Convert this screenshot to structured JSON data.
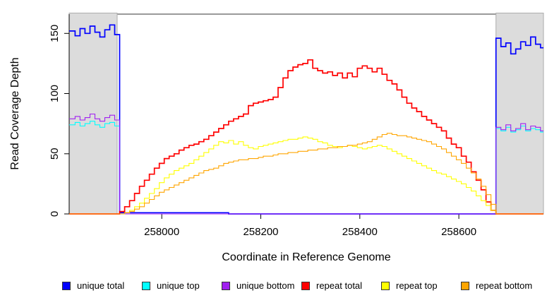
{
  "figure": {
    "xlabel": "Coordinate in Reference Genome",
    "ylabel": "Read Coverage Depth"
  },
  "chart_data": {
    "type": "line",
    "title": "",
    "xlabel": "Coordinate in Reference Genome",
    "ylabel": "Read Coverage Depth",
    "xlim": [
      257813,
      258771
    ],
    "ylim": [
      0,
      166
    ],
    "x_ticks": [
      258000,
      258200,
      258400,
      258600
    ],
    "y_ticks": [
      0,
      50,
      100,
      150
    ],
    "grid": false,
    "legend_position": "bottom",
    "x_start": 257815,
    "x_step": 10,
    "shaded_regions": [
      {
        "id": "unique-region-left",
        "x0": 257813,
        "x1": 257910,
        "color": "#DCDCDC",
        "border": "#ADADAD"
      },
      {
        "id": "unique-region-right",
        "x0": 258675,
        "x1": 258771,
        "color": "#DCDCDC",
        "border": "#ADADAD"
      }
    ],
    "series": [
      {
        "id": "unique-total",
        "name": "unique total",
        "color": "#0000FF",
        "lw": 1.7,
        "values": [
          152,
          148,
          154,
          150,
          156,
          151,
          147,
          153,
          157,
          149,
          1,
          1,
          1,
          1,
          1,
          1,
          1,
          1,
          1,
          1,
          1,
          1,
          1,
          1,
          1,
          1,
          1,
          1,
          1,
          1,
          1,
          1,
          0,
          0,
          0,
          0,
          0,
          0,
          0,
          0,
          0,
          0,
          0,
          0,
          0,
          0,
          0,
          0,
          0,
          0,
          0,
          0,
          0,
          0,
          0,
          0,
          0,
          0,
          0,
          0,
          0,
          0,
          0,
          0,
          0,
          0,
          0,
          0,
          0,
          0,
          0,
          0,
          0,
          0,
          0,
          0,
          0,
          0,
          0,
          0,
          0,
          0,
          0,
          0,
          0,
          0,
          146,
          139,
          142,
          133,
          137,
          143,
          140,
          147,
          141,
          138
        ]
      },
      {
        "id": "unique-top",
        "name": "unique top",
        "color": "#00FFFF",
        "lw": 1.1,
        "values": [
          74,
          76,
          73,
          75,
          77,
          74,
          72,
          75,
          76,
          73,
          0,
          0,
          0,
          0,
          0,
          0,
          0,
          0,
          0,
          0,
          0,
          0,
          0,
          0,
          0,
          0,
          0,
          0,
          0,
          0,
          0,
          0,
          0,
          0,
          0,
          0,
          0,
          0,
          0,
          0,
          0,
          0,
          0,
          0,
          0,
          0,
          0,
          0,
          0,
          0,
          0,
          0,
          0,
          0,
          0,
          0,
          0,
          0,
          0,
          0,
          0,
          0,
          0,
          0,
          0,
          0,
          0,
          0,
          0,
          0,
          0,
          0,
          0,
          0,
          0,
          0,
          0,
          0,
          0,
          0,
          0,
          0,
          0,
          0,
          0,
          0,
          71,
          69,
          72,
          68,
          70,
          73,
          69,
          71,
          70,
          68
        ]
      },
      {
        "id": "unique-bottom",
        "name": "unique bottom",
        "color": "#A020F0",
        "lw": 1.1,
        "values": [
          79,
          81,
          78,
          80,
          83,
          79,
          77,
          80,
          82,
          78,
          0,
          0,
          0,
          0,
          0,
          0,
          0,
          0,
          0,
          0,
          0,
          0,
          0,
          0,
          0,
          0,
          0,
          0,
          0,
          0,
          0,
          0,
          0,
          0,
          0,
          0,
          0,
          0,
          0,
          0,
          0,
          0,
          0,
          0,
          0,
          0,
          0,
          0,
          0,
          0,
          0,
          0,
          0,
          0,
          0,
          0,
          0,
          0,
          0,
          0,
          0,
          0,
          0,
          0,
          0,
          0,
          0,
          0,
          0,
          0,
          0,
          0,
          0,
          0,
          0,
          0,
          0,
          0,
          0,
          0,
          0,
          0,
          0,
          0,
          0,
          0,
          72,
          70,
          74,
          69,
          71,
          75,
          70,
          73,
          72,
          69
        ]
      },
      {
        "id": "repeat-total",
        "name": "repeat total",
        "color": "#FF0000",
        "lw": 1.7,
        "values": [
          0,
          0,
          0,
          0,
          0,
          0,
          0,
          0,
          0,
          0,
          2,
          6,
          11,
          17,
          23,
          28,
          33,
          38,
          42,
          46,
          48,
          50,
          53,
          55,
          57,
          58,
          60,
          62,
          65,
          68,
          71,
          74,
          77,
          79,
          81,
          83,
          90,
          92,
          93,
          94,
          95,
          97,
          105,
          113,
          119,
          122,
          124,
          125,
          128,
          121,
          119,
          117,
          118,
          115,
          117,
          113,
          117,
          114,
          121,
          123,
          121,
          118,
          121,
          116,
          111,
          108,
          103,
          97,
          92,
          88,
          85,
          81,
          78,
          75,
          72,
          69,
          63,
          58,
          55,
          48,
          43,
          35,
          28,
          20,
          10,
          3,
          0,
          0,
          0,
          0,
          0,
          0,
          0,
          0,
          0,
          0
        ]
      },
      {
        "id": "repeat-top",
        "name": "repeat top",
        "color": "#FFFF00",
        "lw": 1.1,
        "values": [
          0,
          0,
          0,
          0,
          0,
          0,
          0,
          0,
          0,
          0,
          0,
          1,
          3,
          6,
          9,
          13,
          17,
          21,
          26,
          30,
          33,
          36,
          38,
          40,
          42,
          45,
          48,
          51,
          54,
          57,
          60,
          59,
          61,
          58,
          60,
          57,
          55,
          54,
          56,
          57,
          58,
          59,
          60,
          61,
          62,
          62,
          63,
          64,
          63,
          62,
          60,
          59,
          57,
          56,
          55,
          56,
          57,
          56,
          55,
          54,
          55,
          56,
          57,
          56,
          54,
          52,
          50,
          48,
          46,
          44,
          42,
          40,
          38,
          36,
          34,
          33,
          31,
          29,
          27,
          25,
          22,
          19,
          15,
          11,
          7,
          3,
          0,
          0,
          0,
          0,
          0,
          0,
          0,
          0,
          0,
          0
        ]
      },
      {
        "id": "repeat-bottom",
        "name": "repeat bottom",
        "color": "#FFA500",
        "lw": 1.1,
        "values": [
          0,
          0,
          0,
          0,
          0,
          0,
          0,
          0,
          0,
          0,
          0,
          1,
          2,
          4,
          6,
          9,
          12,
          15,
          18,
          20,
          22,
          24,
          26,
          28,
          30,
          32,
          34,
          36,
          37,
          38,
          40,
          42,
          43,
          44,
          45,
          45,
          46,
          46,
          47,
          48,
          48,
          49,
          50,
          50,
          51,
          51,
          52,
          52,
          53,
          53,
          54,
          54,
          55,
          55,
          56,
          56,
          57,
          57,
          58,
          59,
          60,
          62,
          64,
          66,
          67,
          66,
          65,
          65,
          64,
          63,
          62,
          61,
          60,
          58,
          56,
          54,
          51,
          48,
          45,
          42,
          38,
          34,
          29,
          23,
          16,
          8,
          0,
          0,
          0,
          0,
          0,
          0,
          0,
          0,
          0,
          0
        ]
      }
    ]
  }
}
